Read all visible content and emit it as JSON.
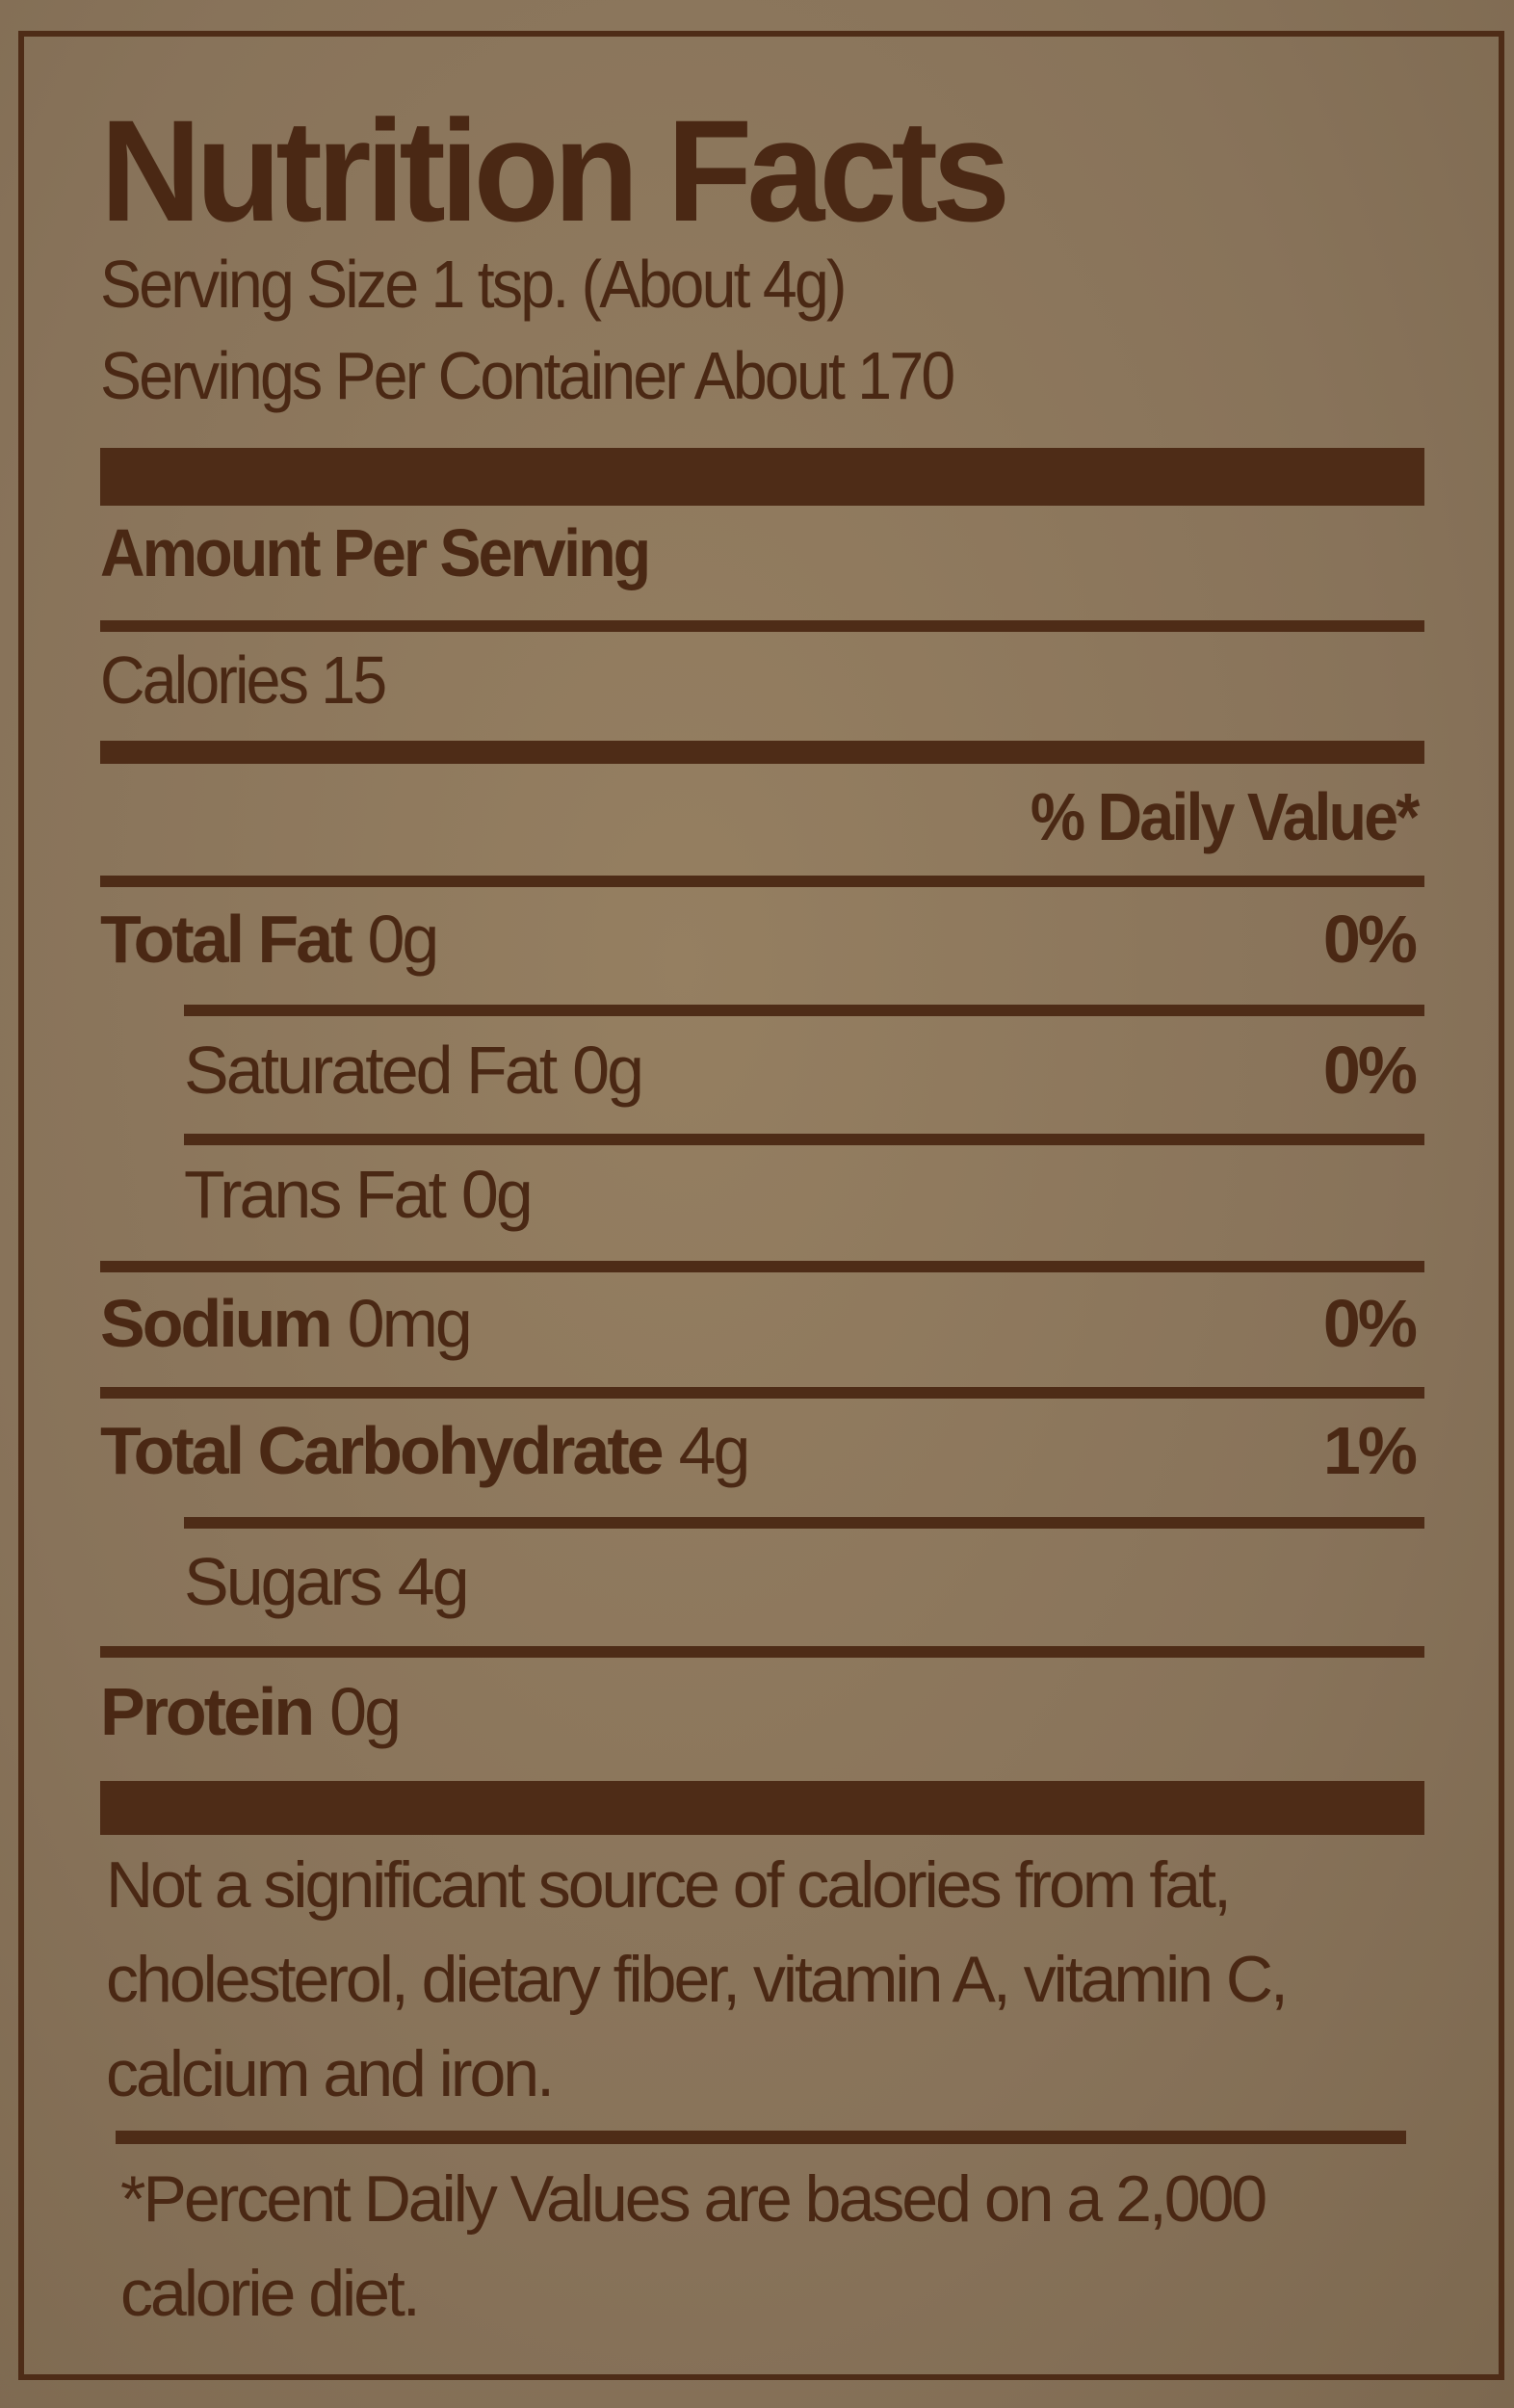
{
  "title": "Nutrition Facts",
  "serving_size": "Serving Size 1 tsp. (About 4g)",
  "servings_per_container": "Servings Per Container About 170",
  "amount_per_serving": "Amount Per Serving",
  "calories": "Calories 15",
  "daily_value_header": "% Daily Value*",
  "rows": [
    {
      "name": "Total Fat",
      "amount": "0g",
      "dv": "0%"
    },
    {
      "name": "Saturated Fat",
      "amount": "0g",
      "dv": "0%"
    },
    {
      "name": "Trans Fat",
      "amount": "0g"
    },
    {
      "name": "Sodium",
      "amount": "0mg",
      "dv": "0%"
    },
    {
      "name": "Total Carbohydrate",
      "amount": "4g",
      "dv": "1%"
    },
    {
      "name": "Sugars",
      "amount": "4g"
    },
    {
      "name": "Protein",
      "amount": "0g"
    }
  ],
  "note": "Not a significant source of calories from fat, cholesterol, dietary fiber, vitamin A, vitamin C, calcium and iron.",
  "footnote": "*Percent Daily Values are based on a 2,000 calorie diet."
}
